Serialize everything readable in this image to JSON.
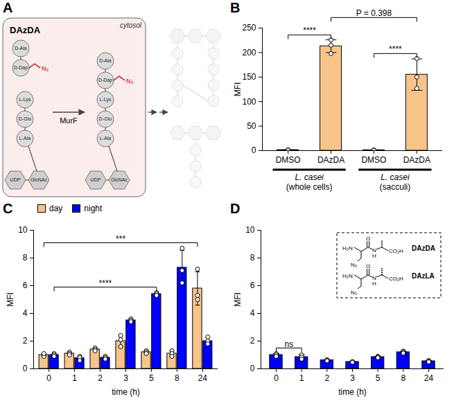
{
  "diagram": {
    "panel": "A",
    "compartment": "cytosol",
    "substrate": "DAzDA",
    "enzyme": "MurF",
    "dipeptide": [
      "D-Ala",
      "D-Dap"
    ],
    "azide": "N₃",
    "stem": [
      "L-Lys",
      "D-Glu",
      "L-Ala"
    ],
    "nucleotide": "UDP",
    "sugar": "GlcNAc"
  },
  "chart_data": [
    {
      "panel": "B",
      "type": "bar",
      "categories": [
        "DMSO",
        "DAzDA",
        "DMSO",
        "DAzDA"
      ],
      "values": [
        1.2,
        213,
        1.0,
        155
      ],
      "errors": [
        0.5,
        13,
        0.4,
        32
      ],
      "points": [
        [
          1.5,
          1.2,
          0.9
        ],
        [
          226,
          215,
          198
        ],
        [
          1.3,
          1.0,
          0.7
        ],
        [
          188,
          150,
          127
        ]
      ],
      "color": "#F8C48A",
      "ylabel": "MFI",
      "ylim": [
        0,
        250
      ],
      "yticks": [
        0,
        50,
        100,
        150,
        200,
        250
      ],
      "groups": [
        {
          "label": "L. casei",
          "sublabel": "(whole cells)",
          "categories": [
            0,
            1
          ]
        },
        {
          "label": "L. casei",
          "sublabel": "(sacculi)",
          "categories": [
            2,
            3
          ]
        }
      ],
      "annotations": [
        {
          "text": "****",
          "between": [
            0,
            1
          ]
        },
        {
          "text": "****",
          "between": [
            2,
            3
          ]
        },
        {
          "text": "P = 0.398",
          "between": [
            1,
            3
          ]
        }
      ]
    },
    {
      "panel": "C",
      "type": "bar",
      "categories": [
        "0",
        "1",
        "2",
        "3",
        "5",
        "8",
        "24"
      ],
      "xlabel": "time (h)",
      "ylabel": "MFI",
      "ylim": [
        0,
        10
      ],
      "yticks": [
        0,
        2,
        4,
        6,
        8,
        10
      ],
      "legend": "top",
      "series": [
        {
          "name": "day",
          "color": "#F8C48A",
          "values": [
            1.0,
            1.1,
            1.4,
            2.0,
            1.2,
            1.1,
            5.8
          ],
          "errors": [
            0.1,
            0.1,
            0.1,
            0.4,
            0.1,
            0.2,
            1.2
          ],
          "points": [
            [
              1.0,
              0.9,
              1.1
            ],
            [
              1.2,
              1.1,
              1.0
            ],
            [
              1.5,
              1.4,
              1.3
            ],
            [
              2.4,
              2.1,
              1.6
            ],
            [
              1.3,
              1.2,
              1.1
            ],
            [
              1.3,
              1.1,
              0.9
            ],
            [
              7.2,
              5.3,
              5.0
            ]
          ]
        },
        {
          "name": "night",
          "color": "#0000FF",
          "values": [
            1.0,
            0.77,
            0.8,
            3.5,
            5.4,
            7.3,
            2.0
          ],
          "errors": [
            0.1,
            0.15,
            0.1,
            0.1,
            0.1,
            1.25,
            0.25
          ],
          "points": [
            [
              1.1,
              1.0,
              0.9
            ],
            [
              0.9,
              0.8,
              0.6
            ],
            [
              0.9,
              0.8,
              0.7
            ],
            [
              3.6,
              3.5,
              3.4
            ],
            [
              5.5,
              5.4,
              5.3
            ],
            [
              8.7,
              7.1,
              6.2
            ],
            [
              2.3,
              2.0,
              1.8
            ]
          ]
        }
      ],
      "annotations": [
        {
          "text": "****",
          "series": "night",
          "between": [
            0,
            4
          ]
        },
        {
          "text": "***",
          "series": "day",
          "between": [
            0,
            6
          ]
        }
      ]
    },
    {
      "panel": "D",
      "type": "bar",
      "categories": [
        "0",
        "1",
        "2",
        "3",
        "5",
        "8",
        "24"
      ],
      "xlabel": "time (h)",
      "ylabel": "MFI",
      "ylim": [
        0,
        10
      ],
      "yticks": [
        0,
        2,
        4,
        6,
        8,
        10
      ],
      "color": "#0000FF",
      "values": [
        1.0,
        0.85,
        0.62,
        0.5,
        0.85,
        1.2,
        0.55
      ],
      "errors": [
        0.1,
        0.15,
        0.04,
        0.04,
        0.05,
        0.07,
        0.05
      ],
      "points": [
        [
          1.1,
          1.0,
          0.9
        ],
        [
          1.0,
          0.85,
          0.7
        ],
        [
          0.65,
          0.62,
          0.58
        ],
        [
          0.52,
          0.5,
          0.47
        ],
        [
          0.9,
          0.85,
          0.8
        ],
        [
          1.28,
          1.2,
          1.13
        ],
        [
          0.6,
          0.55,
          0.5
        ]
      ],
      "annotations": [
        {
          "text": "ns",
          "between": [
            0,
            1
          ]
        }
      ],
      "inset": {
        "structures": [
          {
            "name": "DAzDA",
            "atoms": [
              "H₂N",
              "O",
              "N",
              "H",
              "CO₂H",
              "N₃"
            ]
          },
          {
            "name": "DAzLA",
            "atoms": [
              "H₂N",
              "O",
              "N",
              "H",
              "CO₂H",
              "N₃"
            ]
          }
        ]
      }
    }
  ]
}
